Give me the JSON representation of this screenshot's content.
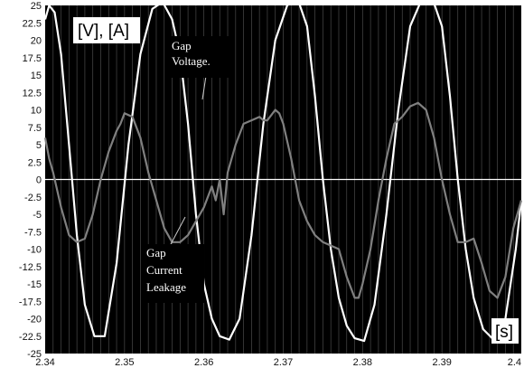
{
  "chart_data": {
    "type": "line",
    "title": "",
    "xlabel": "[s]",
    "ylabel": "[V], [A]",
    "xlim": [
      2.34,
      2.4
    ],
    "ylim": [
      -25,
      25
    ],
    "x_ticks": [
      "2.34",
      "2.35",
      "2.36",
      "2.37",
      "2.38",
      "2.39",
      "2.4"
    ],
    "y_ticks": [
      "25",
      "22.5",
      "20",
      "17.5",
      "15",
      "12.5",
      "10",
      "7.5",
      "5",
      "2.5",
      "0",
      "-2.5",
      "-5",
      "-7.5",
      "-10",
      "-12.5",
      "-15",
      "-17.5",
      "-20",
      "-22.5",
      "-25"
    ],
    "background": "#000000",
    "grid": true,
    "annotations": [
      {
        "lines": [
          "Gap",
          "Voltage."
        ],
        "series": "gap-voltage"
      },
      {
        "lines": [
          "Gap",
          "Current",
          "Leakage"
        ],
        "series": "gap-current-leakage"
      }
    ],
    "series": [
      {
        "name": "Gap Voltage.",
        "color": "#ffffff",
        "x": [
          2.34,
          2.3405,
          2.3412,
          2.342,
          2.343,
          2.344,
          2.345,
          2.3462,
          2.3475,
          2.349,
          2.3505,
          2.352,
          2.3535,
          2.3548,
          2.356,
          2.357,
          2.358,
          2.359,
          2.36,
          2.361,
          2.362,
          2.3632,
          2.3645,
          2.366,
          2.3675,
          2.369,
          2.3705,
          2.3718,
          2.373,
          2.374,
          2.375,
          2.376,
          2.377,
          2.378,
          2.379,
          2.3802,
          2.3815,
          2.383,
          2.3845,
          2.386,
          2.3875,
          2.3888,
          2.39,
          2.391,
          2.392,
          2.393,
          2.394,
          2.3952,
          2.3965,
          2.398,
          2.3993,
          2.4
        ],
        "y": [
          23,
          25,
          24,
          18,
          5,
          -8,
          -18,
          -22.5,
          -22.5,
          -12,
          5,
          18,
          24.5,
          25.5,
          23,
          18,
          8,
          -5,
          -15,
          -20,
          -22.5,
          -23,
          -20,
          -8,
          8,
          20,
          25,
          26,
          22,
          12,
          0,
          -10,
          -17,
          -21,
          -22.8,
          -23.2,
          -18,
          -5,
          10,
          22,
          26,
          26,
          22,
          12,
          0,
          -10,
          -17,
          -21.5,
          -23,
          -20,
          -10,
          -3
        ]
      },
      {
        "name": "Gap Current Leakage",
        "color": "#808080",
        "x": [
          2.34,
          2.3405,
          2.341,
          2.342,
          2.343,
          2.344,
          2.345,
          2.346,
          2.347,
          2.348,
          2.349,
          2.3495,
          2.35,
          2.351,
          2.352,
          2.353,
          2.354,
          2.355,
          2.356,
          2.357,
          2.358,
          2.359,
          2.36,
          2.361,
          2.3615,
          2.362,
          2.3625,
          2.363,
          2.364,
          2.365,
          2.366,
          2.367,
          2.3675,
          2.368,
          2.369,
          2.3695,
          2.37,
          2.371,
          2.372,
          2.373,
          2.374,
          2.375,
          2.376,
          2.377,
          2.378,
          2.379,
          2.3795,
          2.38,
          2.381,
          2.382,
          2.383,
          2.384,
          2.385,
          2.386,
          2.387,
          2.388,
          2.389,
          2.39,
          2.391,
          2.392,
          2.393,
          2.394,
          2.395,
          2.396,
          2.397,
          2.398,
          2.399,
          2.4
        ],
        "y": [
          6,
          3,
          1,
          -4,
          -8,
          -9,
          -8.5,
          -5,
          0,
          4,
          7,
          8,
          9.5,
          9,
          6,
          1,
          -3,
          -7,
          -9,
          -9,
          -8,
          -6,
          -4,
          -1,
          -3,
          0,
          -5,
          1,
          5,
          8,
          8.5,
          9,
          8.5,
          8.5,
          10,
          9.5,
          8,
          3,
          -3,
          -6,
          -8,
          -9,
          -9.5,
          -10,
          -14,
          -17,
          -17,
          -15,
          -10,
          -3,
          3,
          8,
          9,
          10.5,
          11,
          10,
          6,
          0,
          -5,
          -9,
          -9,
          -8.5,
          -12,
          -16,
          -17,
          -14,
          -7,
          -3
        ]
      }
    ]
  }
}
